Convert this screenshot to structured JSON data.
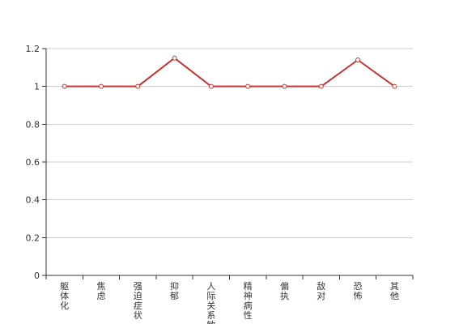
{
  "chart_data": {
    "type": "line",
    "categories": [
      "躯体化",
      "焦虑",
      "强迫症状",
      "抑郁",
      "人际关系敏感",
      "精神病性",
      "偏执",
      "敌对",
      "恐怖",
      "其他"
    ],
    "series": [
      {
        "values": [
          1,
          1,
          1,
          1.15,
          1,
          1,
          1,
          1,
          1.14,
          1
        ],
        "color": "#c23531"
      }
    ],
    "ylim": [
      0,
      1.2
    ],
    "yticks": [
      0,
      0.2,
      0.4,
      0.6,
      0.8,
      1,
      1.2
    ],
    "ytick_labels": [
      "0",
      "0.2",
      "0.4",
      "0.6",
      "0.8",
      "1",
      "1.2"
    ],
    "grid": true,
    "legend": "none",
    "gridline_color": "#cccccc",
    "axis_color": "#333333"
  }
}
